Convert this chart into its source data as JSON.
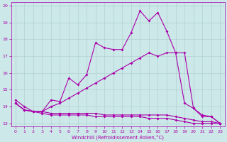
{
  "xlabel": "Windchill (Refroidissement éolien,°C)",
  "xlim": [
    -0.5,
    23.5
  ],
  "ylim": [
    12.8,
    20.2
  ],
  "yticks": [
    13,
    14,
    15,
    16,
    17,
    18,
    19,
    20
  ],
  "xticks": [
    0,
    1,
    2,
    3,
    4,
    5,
    6,
    7,
    8,
    9,
    10,
    11,
    12,
    13,
    14,
    15,
    16,
    17,
    18,
    19,
    20,
    21,
    22,
    23
  ],
  "bg_color": "#cce8e8",
  "line_color": "#aa00aa",
  "grid_color": "#aacccc",
  "s1_x": [
    0,
    1,
    2,
    3,
    4,
    5,
    6,
    7,
    8,
    9,
    10,
    11,
    12,
    13,
    14,
    15,
    16,
    17,
    18,
    19,
    20,
    21,
    22,
    23
  ],
  "s1_y": [
    14.4,
    14.0,
    13.7,
    13.7,
    14.4,
    14.3,
    15.7,
    15.3,
    15.9,
    17.8,
    17.5,
    17.4,
    17.4,
    18.4,
    19.7,
    19.1,
    19.6,
    18.5,
    17.2,
    17.2,
    13.9,
    13.5,
    13.4,
    13.0
  ],
  "s2_x": [
    0,
    1,
    2,
    3,
    4,
    5,
    6,
    7,
    8,
    9,
    10,
    11,
    12,
    13,
    14,
    15,
    16,
    17,
    18,
    19,
    20,
    21,
    22,
    23
  ],
  "s2_y": [
    14.2,
    13.8,
    13.7,
    13.7,
    14.0,
    14.2,
    14.5,
    14.8,
    15.1,
    15.4,
    15.7,
    16.0,
    16.3,
    16.6,
    16.9,
    17.2,
    17.0,
    17.2,
    17.2,
    14.2,
    13.9,
    13.4,
    13.4,
    13.0
  ],
  "s3_x": [
    0,
    1,
    2,
    3,
    4,
    5,
    6,
    7,
    8,
    9,
    10,
    11,
    12,
    13,
    14,
    15,
    16,
    17,
    18,
    19,
    20,
    21,
    22,
    23
  ],
  "s3_y": [
    14.2,
    13.8,
    13.7,
    13.7,
    13.6,
    13.6,
    13.6,
    13.6,
    13.6,
    13.6,
    13.5,
    13.5,
    13.5,
    13.5,
    13.5,
    13.5,
    13.5,
    13.5,
    13.4,
    13.3,
    13.2,
    13.1,
    13.1,
    13.0
  ],
  "s4_x": [
    0,
    1,
    2,
    3,
    4,
    5,
    6,
    7,
    8,
    9,
    10,
    11,
    12,
    13,
    14,
    15,
    16,
    17,
    18,
    19,
    20,
    21,
    22,
    23
  ],
  "s4_y": [
    14.2,
    13.8,
    13.7,
    13.6,
    13.5,
    13.5,
    13.5,
    13.5,
    13.5,
    13.4,
    13.4,
    13.4,
    13.4,
    13.4,
    13.4,
    13.3,
    13.3,
    13.3,
    13.2,
    13.1,
    13.0,
    13.0,
    13.0,
    13.0
  ]
}
